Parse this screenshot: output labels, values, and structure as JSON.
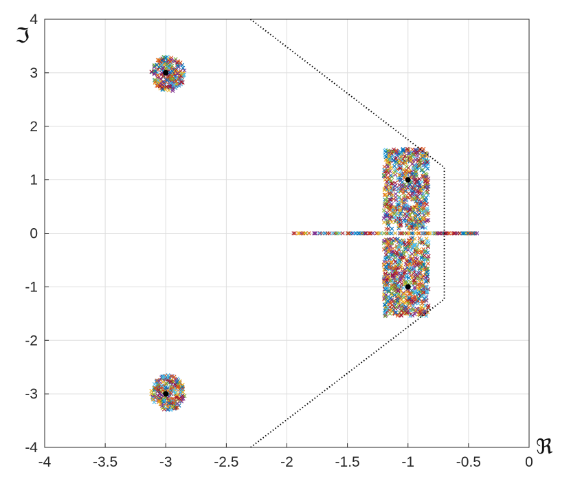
{
  "chart_data": {
    "type": "scatter",
    "title": "",
    "xlabel": "ℜ",
    "ylabel": "ℑ",
    "xlim": [
      -4,
      0
    ],
    "ylim": [
      -4,
      4
    ],
    "grid": true,
    "x_ticks": [
      -4,
      -3.5,
      -3,
      -2.5,
      -2,
      -1.5,
      -1,
      -0.5,
      0
    ],
    "x_tick_labels": [
      "-4",
      "-3.5",
      "-3",
      "-2.5",
      "-2",
      "-1.5",
      "-1",
      "-0.5",
      "0"
    ],
    "y_ticks": [
      -4,
      -3,
      -2,
      -1,
      0,
      1,
      2,
      3,
      4
    ],
    "y_tick_labels": [
      "-4",
      "-3",
      "-2",
      "-1",
      "0",
      "1",
      "2",
      "3",
      "4"
    ],
    "nominal_poles": [
      {
        "x": -3,
        "y": 3
      },
      {
        "x": -3,
        "y": -3
      },
      {
        "x": -1,
        "y": 1
      },
      {
        "x": -1,
        "y": -1
      }
    ],
    "region_boundary": [
      {
        "x": -2.3,
        "y": 4
      },
      {
        "x": -0.7,
        "y": 1.23
      },
      {
        "x": -0.7,
        "y": -1.23
      },
      {
        "x": -2.3,
        "y": -4
      }
    ],
    "pole_clouds": [
      {
        "shape": "ellipse",
        "cx": -2.98,
        "cy": 2.98,
        "rx": 0.14,
        "ry": 0.33
      },
      {
        "shape": "ellipse",
        "cx": -2.98,
        "cy": -2.98,
        "rx": 0.14,
        "ry": 0.33
      },
      {
        "shape": "rect",
        "x_range": [
          -1.2,
          -0.83
        ],
        "y_range": [
          0.08,
          1.58
        ]
      },
      {
        "shape": "rect",
        "x_range": [
          -1.2,
          -0.83
        ],
        "y_range": [
          -1.55,
          -0.08
        ]
      },
      {
        "shape": "line",
        "x_range": [
          -2.0,
          -0.42
        ],
        "y": 0
      }
    ],
    "marker_colors": [
      "#0072BD",
      "#D95319",
      "#EDB120",
      "#7E2F8E",
      "#77AC30",
      "#4DBEEE",
      "#A2142F"
    ]
  }
}
